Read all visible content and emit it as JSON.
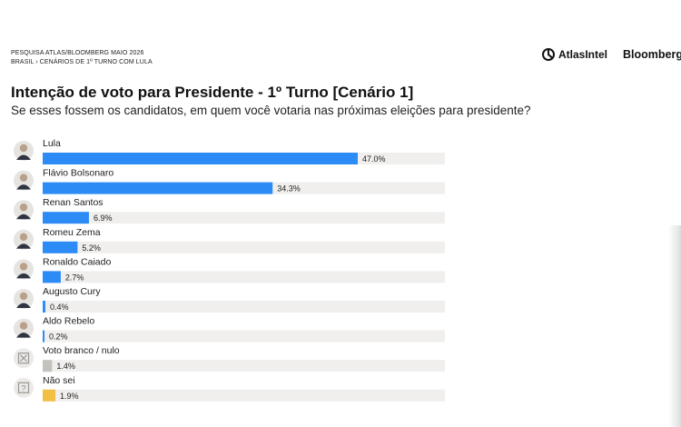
{
  "header": {
    "source_line1": "PESQUISA ATLAS/BLOOMBERG MAIO 2026",
    "source_line2": "BRASIL › CENÁRIOS DE 1º TURNO COM LULA",
    "brand_atlas": "AtlasIntel",
    "brand_bloomberg": "Bloomberg"
  },
  "chart_data": {
    "type": "bar",
    "orientation": "horizontal",
    "title": "Intenção de voto para Presidente - 1º Turno [Cenário 1]",
    "subtitle": "Se esses fossem os candidatos, em quem você votaria nas próximas eleições para presidente?",
    "xlim": [
      0,
      100
    ],
    "grid": false,
    "categories": [
      "Lula",
      "Flávio Bolsonaro",
      "Renan Santos",
      "Romeu Zema",
      "Ronaldo Caiado",
      "Augusto Cury",
      "Aldo Rebelo",
      "Voto branco / nulo",
      "Não sei"
    ],
    "values": [
      47.0,
      34.3,
      6.9,
      5.2,
      2.7,
      0.4,
      0.2,
      1.4,
      1.9
    ],
    "value_labels": [
      "47.0%",
      "34.3%",
      "6.9%",
      "5.2%",
      "2.7%",
      "0.4%",
      "0.2%",
      "1.4%",
      "1.9%"
    ],
    "bar_colors": [
      "#2d8bf5",
      "#2d8bf5",
      "#2d8bf5",
      "#2d8bf5",
      "#2d8bf5",
      "#2d8bf5",
      "#2d8bf5",
      "#c4c2bd",
      "#f2bf45"
    ],
    "track_color": "#f0efed",
    "icons": [
      "person-photo-icon",
      "person-photo-icon",
      "person-photo-icon",
      "person-photo-icon",
      "person-photo-icon",
      "person-photo-icon",
      "person-photo-icon",
      "blank-null-vote-icon",
      "unknown-question-icon"
    ]
  }
}
